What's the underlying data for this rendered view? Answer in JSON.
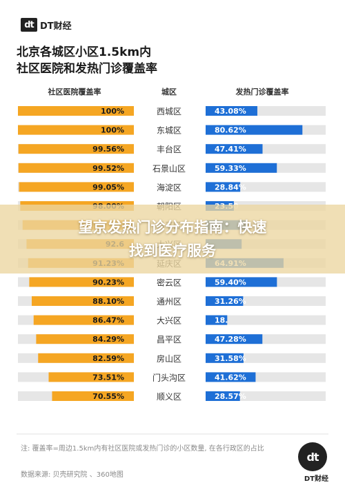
{
  "brand": {
    "logo": "dt",
    "name": "DT财经"
  },
  "title_line1": "北京各城区小区1.5km内",
  "title_line2": "社区医院和发热门诊覆盖率",
  "overlay": {
    "line1": "望京发热门诊分布指南：快速",
    "line2": "找到医疗服务"
  },
  "note": "注: 覆盖率=周边1.5km内有社区医院或发热门诊的小区数量, 在各行政区的占比",
  "source": "数据来源: 贝壳研究院 、360地图",
  "colors": {
    "orange": "#f5a623",
    "blue": "#1e6fd6",
    "track": "#e6e6e6"
  },
  "chart_data": {
    "type": "bar",
    "headers": {
      "left": "社区医院覆盖率",
      "middle": "城区",
      "right": "发热门诊覆盖率"
    },
    "categories": [
      "西城区",
      "东城区",
      "丰台区",
      "石景山区",
      "海淀区",
      "朝阳区",
      "昌平区",
      "大兴区",
      "延庆区",
      "密云区",
      "通州区",
      "大兴区",
      "昌平区",
      "房山区",
      "门头沟区",
      "顺义区"
    ],
    "series": [
      {
        "name": "社区医院覆盖率",
        "values": [
          100,
          100,
          99.56,
          99.52,
          99.05,
          98.0,
          96.0,
          92.6,
          91.23,
          90.23,
          88.1,
          86.47,
          84.29,
          82.59,
          73.51,
          70.55
        ],
        "labels": [
          "100%",
          "100%",
          "99.56%",
          "99.52%",
          "99.05%",
          "98.00%",
          "",
          "92.6",
          "91.23%",
          "90.23%",
          "88.10%",
          "86.47%",
          "84.29%",
          "82.59%",
          "73.51%",
          "70.55%"
        ]
      },
      {
        "name": "发热门诊覆盖率",
        "values": [
          43.08,
          80.62,
          47.41,
          59.33,
          28.84,
          23.5,
          35.0,
          30.0,
          64.91,
          59.4,
          31.26,
          18.0,
          47.28,
          31.58,
          41.62,
          28.57
        ],
        "labels": [
          "43.08%",
          "80.62%",
          "47.41%",
          "59.33%",
          "28.84%",
          "23.50",
          "",
          "",
          "64.91%",
          "59.40%",
          "31.26%",
          "18.",
          "47.28%",
          "31.58%",
          "41.62%",
          "28.57%"
        ]
      }
    ],
    "xlim": [
      0,
      100
    ]
  }
}
